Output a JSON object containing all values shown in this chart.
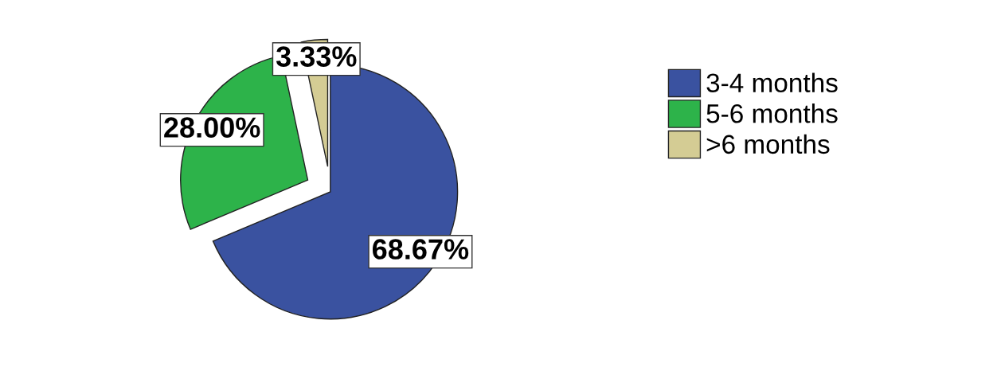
{
  "chart_data": {
    "type": "pie",
    "categories": [
      "3-4 months",
      "5-6 months",
      ">6 months"
    ],
    "values": [
      68.67,
      28.0,
      3.33
    ],
    "colors": [
      "#3a52a0",
      "#2db34a",
      "#d4cc94"
    ],
    "value_labels": [
      "68.67%",
      "28.00%",
      "3.33%"
    ],
    "legend": "right"
  }
}
